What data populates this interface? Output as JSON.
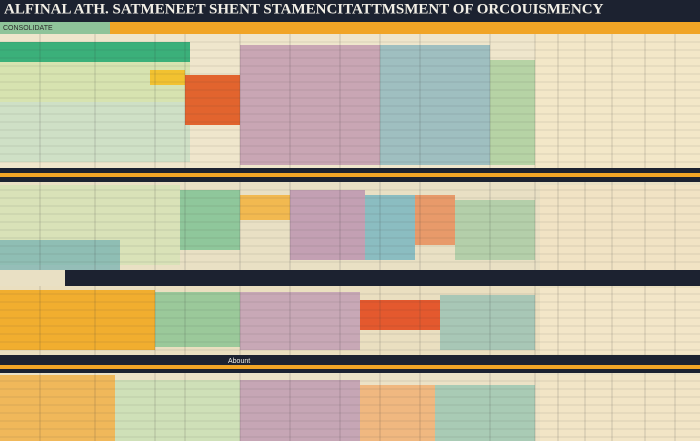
{
  "header": {
    "title": "ALFINAL ATH. SATMENEET SHENT STAMENCITATTMSMENT OF ORCOUISMENCY"
  },
  "sections": [
    {
      "label": "CONSOLIDATE"
    },
    {
      "label": "Abount"
    }
  ]
}
